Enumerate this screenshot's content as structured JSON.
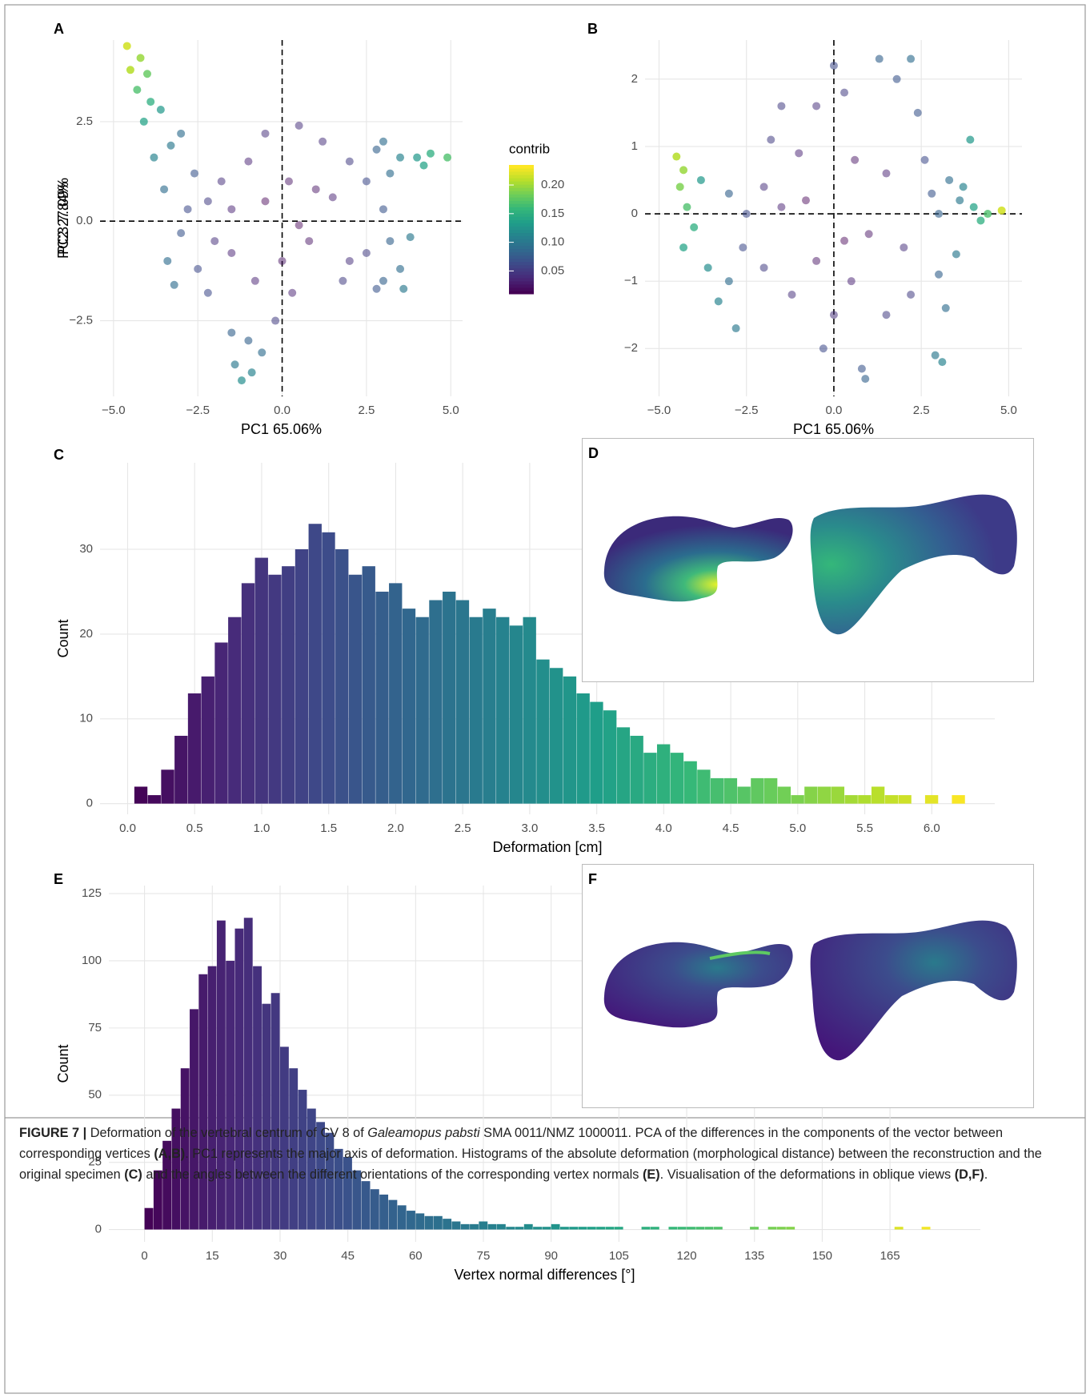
{
  "chart_data": [
    {
      "type": "scatter",
      "panel_label": "A",
      "xlabel": "PC1 65.06%",
      "ylabel": "PC2 27.09%",
      "xlim": [
        -5.4,
        5.35
      ],
      "ylim": [
        -4.4,
        4.55
      ],
      "xticks": [
        {
          "value": -5,
          "label": "−5.0"
        },
        {
          "value": -2.5,
          "label": "−2.5"
        },
        {
          "value": 0,
          "label": "0.0"
        },
        2.5,
        {
          "value": 5,
          "label": "5.0"
        }
      ],
      "yticks": [
        {
          "value": -2.5,
          "label": "−2.5"
        },
        {
          "value": 0,
          "label": "0.0"
        },
        2.5
      ],
      "grid": true,
      "refline_x": 0,
      "refline_y": 0,
      "colormap": "viridis",
      "color_lim": [
        0.01,
        0.235
      ],
      "colorbar": {
        "title": "contrib",
        "ticks": [
          0.05,
          {
            "value": 0.1,
            "label": "0.10"
          },
          0.15,
          {
            "value": 0.2,
            "label": "0.20"
          }
        ]
      },
      "x": [
        -4.6,
        -4.5,
        -4.2,
        -4.0,
        -4.3,
        -3.9,
        -4.1,
        -3.6,
        -3.8,
        -3.3,
        -3.0,
        -2.6,
        -3.5,
        -2.2,
        -3.0,
        -3.4,
        -3.2,
        -2.5,
        -2.0,
        -1.5,
        -1.0,
        -0.5,
        0.5,
        1.2,
        1.5,
        0.8,
        0.0,
        0.3,
        -0.2,
        -1.0,
        -1.4,
        -0.9,
        -1.2,
        -0.6,
        -1.5,
        2.0,
        2.5,
        2.8,
        3.0,
        3.2,
        3.5,
        4.0,
        4.4,
        4.9,
        4.2,
        3.2,
        3.5,
        3.0,
        2.5,
        3.8,
        3.6,
        2.8,
        2.0,
        1.0,
        -0.5,
        0.5,
        -1.5,
        -2.8,
        -1.8,
        1.8,
        -0.8,
        0.2,
        -2.2,
        3.0
      ],
      "y": [
        4.4,
        3.8,
        4.1,
        3.7,
        3.3,
        3.0,
        2.5,
        2.8,
        1.6,
        1.9,
        2.2,
        1.2,
        0.8,
        0.5,
        -0.3,
        -1.0,
        -1.6,
        -1.2,
        -0.5,
        0.3,
        1.5,
        2.2,
        2.4,
        2.0,
        0.6,
        -0.5,
        -1.0,
        -1.8,
        -2.5,
        -3.0,
        -3.6,
        -3.8,
        -4.0,
        -3.3,
        -2.8,
        1.5,
        1.0,
        1.8,
        2.0,
        1.2,
        1.6,
        1.6,
        1.7,
        1.6,
        1.4,
        -0.5,
        -1.2,
        -1.5,
        -0.8,
        -0.4,
        -1.7,
        -1.7,
        -1.0,
        0.8,
        0.5,
        -0.1,
        -0.8,
        0.3,
        1.0,
        -1.5,
        -1.5,
        1.0,
        -1.8,
        0.3
      ],
      "contrib": [
        0.22,
        0.21,
        0.2,
        0.18,
        0.17,
        0.15,
        0.14,
        0.13,
        0.11,
        0.1,
        0.09,
        0.07,
        0.09,
        0.05,
        0.07,
        0.09,
        0.09,
        0.06,
        0.04,
        0.03,
        0.03,
        0.04,
        0.04,
        0.04,
        0.03,
        0.02,
        0.02,
        0.03,
        0.05,
        0.08,
        0.1,
        0.11,
        0.12,
        0.09,
        0.08,
        0.05,
        0.06,
        0.08,
        0.09,
        0.09,
        0.11,
        0.13,
        0.15,
        0.17,
        0.14,
        0.08,
        0.09,
        0.08,
        0.05,
        0.1,
        0.1,
        0.07,
        0.04,
        0.02,
        0.01,
        0.01,
        0.03,
        0.06,
        0.04,
        0.05,
        0.03,
        0.02,
        0.06,
        0.07
      ]
    },
    {
      "type": "scatter",
      "panel_label": "B",
      "xlabel": "PC1 65.06%",
      "ylabel": "PC3 7.84%",
      "xlim": [
        -5.4,
        5.38
      ],
      "ylim": [
        -2.71,
        2.58
      ],
      "xticks": [
        {
          "value": -5,
          "label": "−5.0"
        },
        {
          "value": -2.5,
          "label": "−2.5"
        },
        {
          "value": 0,
          "label": "0.0"
        },
        2.5,
        {
          "value": 5,
          "label": "5.0"
        }
      ],
      "yticks": [
        {
          "value": -2,
          "label": "−2"
        },
        {
          "value": -1,
          "label": "−1"
        },
        0,
        1,
        2
      ],
      "grid": true,
      "refline_x": 0,
      "refline_y": 0,
      "colormap": "viridis",
      "color_lim": [
        0.01,
        0.235
      ],
      "x": [
        -4.5,
        -4.3,
        -4.4,
        -4.2,
        -4.0,
        -4.3,
        -3.8,
        -3.6,
        -3.3,
        -3.0,
        -2.8,
        -3.0,
        -2.5,
        -2.0,
        -1.5,
        -1.0,
        -0.5,
        -1.5,
        0.0,
        0.3,
        1.3,
        1.8,
        2.2,
        2.4,
        2.6,
        2.8,
        3.0,
        3.3,
        3.6,
        3.9,
        4.0,
        4.2,
        4.4,
        4.8,
        3.5,
        3.0,
        3.2,
        2.9,
        3.1,
        2.0,
        1.0,
        0.5,
        0.0,
        -0.3,
        0.8,
        0.9,
        0.3,
        -0.5,
        -1.2,
        -2.0,
        1.5,
        0.6,
        -0.8,
        2.2,
        1.5,
        -1.8,
        -2.6,
        3.7
      ],
      "y": [
        0.85,
        0.65,
        0.4,
        0.1,
        -0.2,
        -0.5,
        0.5,
        -0.8,
        -1.3,
        -1.0,
        -1.7,
        0.3,
        0.0,
        0.4,
        0.1,
        0.9,
        1.6,
        1.6,
        2.2,
        1.8,
        2.3,
        2.0,
        2.3,
        1.5,
        0.8,
        0.3,
        0.0,
        0.5,
        0.2,
        1.1,
        0.1,
        -0.1,
        0.0,
        0.05,
        -0.6,
        -0.9,
        -1.4,
        -2.1,
        -2.2,
        -0.5,
        -0.3,
        -1.0,
        -1.5,
        -2.0,
        -2.3,
        -2.45,
        -0.4,
        -0.7,
        -1.2,
        -0.8,
        0.6,
        0.8,
        0.2,
        -1.2,
        -1.5,
        1.1,
        -0.5,
        0.4
      ],
      "contrib": [
        0.21,
        0.2,
        0.19,
        0.17,
        0.15,
        0.14,
        0.13,
        0.12,
        0.11,
        0.09,
        0.1,
        0.08,
        0.06,
        0.04,
        0.03,
        0.03,
        0.04,
        0.05,
        0.06,
        0.05,
        0.08,
        0.07,
        0.09,
        0.07,
        0.06,
        0.07,
        0.08,
        0.09,
        0.1,
        0.13,
        0.14,
        0.15,
        0.17,
        0.22,
        0.1,
        0.08,
        0.09,
        0.1,
        0.11,
        0.04,
        0.02,
        0.03,
        0.04,
        0.06,
        0.07,
        0.08,
        0.01,
        0.02,
        0.04,
        0.05,
        0.03,
        0.02,
        0.01,
        0.05,
        0.05,
        0.05,
        0.06,
        0.11
      ]
    },
    {
      "type": "histogram",
      "panel_label": "C",
      "xlabel": "Deformation [cm]",
      "ylabel": "Count",
      "xlim": [
        -0.206,
        6.47
      ],
      "ylim": [
        -1.26,
        40.2
      ],
      "xticks": [
        {
          "value": 0,
          "label": "0.0"
        },
        0.5,
        {
          "value": 1,
          "label": "1.0"
        },
        1.5,
        {
          "value": 2,
          "label": "2.0"
        },
        2.5,
        {
          "value": 3,
          "label": "3.0"
        },
        3.5,
        {
          "value": 4,
          "label": "4.0"
        },
        4.5,
        {
          "value": 5,
          "label": "5.0"
        },
        5.5,
        {
          "value": 6,
          "label": "6.0"
        }
      ],
      "yticks": [
        0,
        10,
        20,
        30
      ],
      "grid": true,
      "colormap": "viridis",
      "bins": [
        0.05,
        0.15,
        0.25,
        0.35,
        0.45,
        0.55,
        0.65,
        0.75,
        0.85,
        0.95,
        1.05,
        1.15,
        1.25,
        1.35,
        1.45,
        1.55,
        1.65,
        1.75,
        1.85,
        1.95,
        2.05,
        2.15,
        2.25,
        2.35,
        2.45,
        2.55,
        2.65,
        2.75,
        2.85,
        2.95,
        3.05,
        3.15,
        3.25,
        3.35,
        3.45,
        3.55,
        3.65,
        3.75,
        3.85,
        3.95,
        4.05,
        4.15,
        4.25,
        4.35,
        4.45,
        4.55,
        4.65,
        4.75,
        4.85,
        4.95,
        5.05,
        5.15,
        5.25,
        5.35,
        5.45,
        5.55,
        5.65,
        5.75,
        5.85,
        5.95,
        6.05,
        6.15,
        6.25
      ],
      "counts": [
        2,
        1,
        4,
        8,
        13,
        15,
        19,
        22,
        26,
        29,
        27,
        28,
        30,
        33,
        32,
        30,
        27,
        28,
        25,
        26,
        23,
        22,
        24,
        25,
        24,
        22,
        23,
        22,
        21,
        22,
        17,
        16,
        15,
        13,
        12,
        11,
        9,
        8,
        6,
        7,
        6,
        5,
        4,
        3,
        3,
        2,
        3,
        3,
        2,
        1,
        2,
        2,
        2,
        1,
        1,
        2,
        1,
        1,
        0,
        1,
        0,
        1
      ]
    },
    {
      "type": "image",
      "panel_label": "D"
    },
    {
      "type": "histogram",
      "panel_label": "E",
      "xlabel": "Vertex normal differences [°]",
      "ylabel": "Count",
      "xlim": [
        -7.9,
        185
      ],
      "ylim": [
        -4.6,
        128
      ],
      "xticks": [
        0,
        15,
        30,
        45,
        60,
        75,
        90,
        105,
        120,
        135,
        150,
        165
      ],
      "yticks": [
        0,
        25,
        50,
        75,
        100,
        125
      ],
      "grid": true,
      "colormap": "viridis",
      "bins": [
        0,
        2,
        4,
        6,
        8,
        10,
        12,
        14,
        16,
        18,
        20,
        22,
        24,
        26,
        28,
        30,
        32,
        34,
        36,
        38,
        40,
        42,
        44,
        46,
        48,
        50,
        52,
        54,
        56,
        58,
        60,
        62,
        64,
        66,
        68,
        70,
        72,
        74,
        76,
        78,
        80,
        82,
        84,
        86,
        88,
        90,
        92,
        94,
        96,
        98,
        100,
        102,
        104,
        106,
        108,
        110,
        112,
        114,
        116,
        118,
        120,
        122,
        124,
        126,
        128,
        130,
        132,
        134,
        136,
        138,
        140,
        142,
        144,
        146,
        148,
        150,
        152,
        154,
        156,
        158,
        160,
        162,
        164,
        166,
        168,
        170,
        172,
        174,
        176
      ],
      "counts": [
        8,
        22,
        33,
        45,
        60,
        82,
        95,
        98,
        115,
        100,
        112,
        116,
        98,
        84,
        88,
        68,
        60,
        52,
        45,
        40,
        36,
        30,
        27,
        22,
        18,
        15,
        13,
        11,
        9,
        7,
        6,
        5,
        5,
        4,
        3,
        2,
        2,
        3,
        2,
        2,
        1,
        1,
        2,
        1,
        1,
        2,
        1,
        1,
        1,
        1,
        1,
        1,
        1,
        0,
        0,
        1,
        1,
        0,
        1,
        1,
        1,
        1,
        1,
        1,
        0,
        0,
        0,
        1,
        0,
        1,
        1,
        1,
        0,
        0,
        0,
        0,
        0,
        0,
        0,
        0,
        0,
        0,
        0,
        1,
        0,
        0,
        1,
        0
      ]
    },
    {
      "type": "image",
      "panel_label": "F"
    }
  ],
  "caption": {
    "label": "FIGURE 7 |",
    "parts": [
      " Deformation of the vertebral centrum of CV 8 of ",
      "Galeamopus pabsti",
      " SMA 0011/NMZ 1000011. PCA of the differences in the components of the vector between corresponding vertices ",
      "(A,B)",
      ". PC1 represents the major axis of deformation. Histograms of the absolute deformation (morphological distance) between the reconstruction and the original specimen ",
      "(C)",
      " and the angles between the different orientations of the corresponding vertex normals ",
      "(E)",
      ". Visualisation of the deformations in oblique views ",
      "(D,F)",
      "."
    ]
  }
}
